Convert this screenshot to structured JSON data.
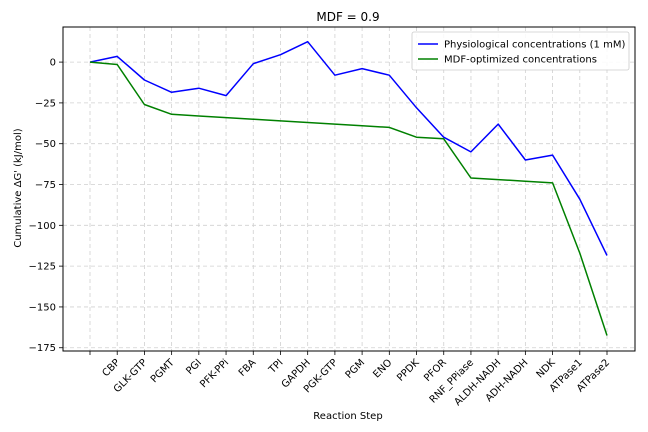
{
  "chart_data": {
    "type": "line",
    "title": "MDF = 0.9",
    "xlabel": "Reaction Step",
    "ylabel": "Cumulative ΔG' (kJ/mol)",
    "categories": [
      "",
      "CBP",
      "GLK-GTP",
      "PGMT",
      "PGI",
      "PFK-PPi",
      "FBA",
      "TPI",
      "GAPDH",
      "PGK-GTP",
      "PGM",
      "ENO",
      "PPDK",
      "PFOR",
      "RNF_PPiase",
      "ALDH-NADH",
      "ADH-NADH",
      "NDK",
      "ATPase1",
      "ATPase2"
    ],
    "ylim": [
      -177,
      21.5
    ],
    "yticks": [
      0,
      -25,
      -50,
      -75,
      -100,
      -125,
      -150,
      -175
    ],
    "ytick_labels": [
      "0",
      "−25",
      "−50",
      "−75",
      "−100",
      "−125",
      "−150",
      "−175"
    ],
    "grid": true,
    "legend_position": "top-right",
    "series": [
      {
        "name": "Physiological concentrations (1 mM)",
        "color": "#0000ff",
        "values": [
          0,
          3.5,
          -11,
          -18.5,
          -16,
          -20.5,
          -1,
          4.5,
          12.5,
          -8,
          -4,
          -8,
          -28,
          -46,
          -55,
          -38,
          -60,
          -57,
          -84,
          -118.5
        ]
      },
      {
        "name": "MDF-optimized concentrations",
        "color": "#008000",
        "values": [
          0,
          -1.5,
          -26,
          -32,
          -33,
          -34,
          -35,
          -36,
          -37,
          -38,
          -39,
          -40,
          -46,
          -47,
          -71,
          -72,
          -73,
          -74,
          -117,
          -167.5
        ]
      }
    ]
  }
}
